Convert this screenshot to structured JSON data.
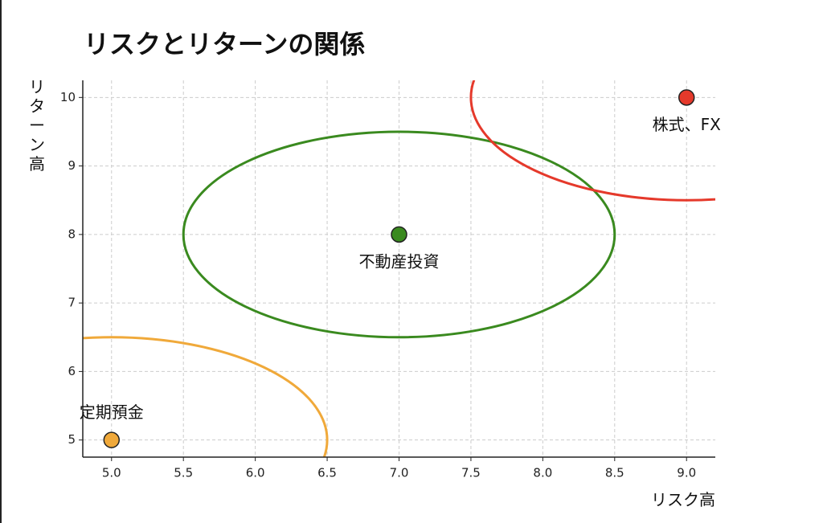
{
  "chart_data": {
    "type": "scatter",
    "title": "リスクとリターンの関係",
    "xlabel": "リスク高",
    "ylabel": "リターン高",
    "xlim": [
      4.8,
      9.2
    ],
    "ylim": [
      4.75,
      10.25
    ],
    "xticks": [
      5.0,
      5.5,
      6.0,
      6.5,
      7.0,
      7.5,
      8.0,
      8.5,
      9.0
    ],
    "xtick_labels": [
      "5.0",
      "5.5",
      "6.0",
      "6.5",
      "7.0",
      "7.5",
      "8.0",
      "8.5",
      "9.0"
    ],
    "yticks": [
      5,
      6,
      7,
      8,
      9,
      10
    ],
    "ytick_labels": [
      "5",
      "6",
      "7",
      "8",
      "9",
      "10"
    ],
    "grid": true,
    "points": [
      {
        "label": "定期預金",
        "x": 5.0,
        "y": 5.0,
        "color": "#f0a93a",
        "label_position": "above"
      },
      {
        "label": "不動産投資",
        "x": 7.0,
        "y": 8.0,
        "color": "#3a8a1f",
        "label_position": "below"
      },
      {
        "label": "株式、FX",
        "x": 9.0,
        "y": 10.0,
        "color": "#e5392b",
        "label_position": "below"
      }
    ],
    "ellipses": [
      {
        "cx": 5.0,
        "cy": 5.0,
        "rx": 1.5,
        "ry": 1.5,
        "color": "#f0a93a"
      },
      {
        "cx": 7.0,
        "cy": 8.0,
        "rx": 1.5,
        "ry": 1.5,
        "color": "#3a8a1f"
      },
      {
        "cx": 9.0,
        "cy": 10.0,
        "rx": 1.5,
        "ry": 1.5,
        "color": "#e5392b"
      }
    ]
  }
}
